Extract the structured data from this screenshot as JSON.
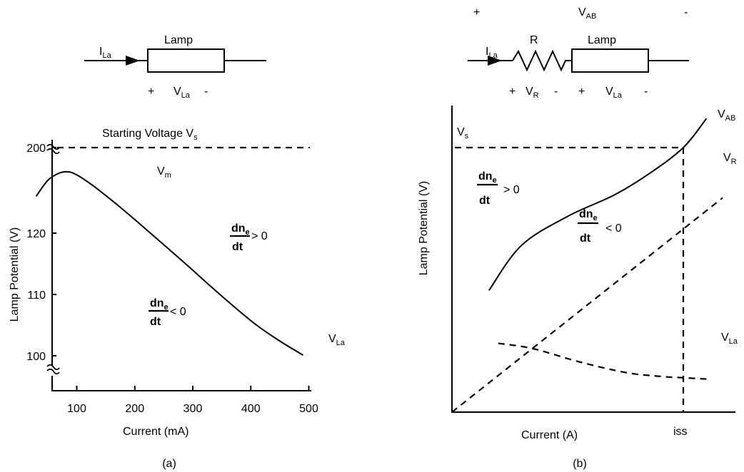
{
  "panel_a": {
    "caption": "(a)",
    "circuit": {
      "current_main": "I",
      "current_sub": "La",
      "lamp_label": "Lamp",
      "plus": "+",
      "volt_main": "V",
      "volt_sub": "La",
      "minus": "-"
    },
    "starting_voltage_label": "Starting Voltage V",
    "starting_voltage_sub": "s",
    "vm_main": "V",
    "vm_sub": "m",
    "curve_main": "V",
    "curve_sub": "La",
    "annot_pos": {
      "num_main": "dn",
      "num_sub": "e",
      "den": "dt",
      "rel": "> 0"
    },
    "annot_neg": {
      "num_main": "dn",
      "num_sub": "e",
      "den": "dt",
      "rel": "< 0"
    }
  },
  "panel_b": {
    "caption": "(b)",
    "circuit": {
      "plus_left": "+",
      "vab_main": "V",
      "vab_sub": "AB",
      "minus_right": "-",
      "current_main": "I",
      "current_sub": "La",
      "resistor_label": "R",
      "lamp_label": "Lamp",
      "r_plus": "+",
      "r_main": "V",
      "r_sub": "R",
      "r_minus": "-",
      "la_plus": "+",
      "la_main": "V",
      "la_sub": "La",
      "la_minus": "-"
    },
    "vs_main": "V",
    "vs_sub": "s",
    "vab_curve_main": "V",
    "vab_curve_sub": "AB",
    "vr_curve_main": "V",
    "vr_curve_sub": "R",
    "vla_curve_main": "V",
    "vla_curve_sub": "La",
    "annot_pos": {
      "num_main": "dn",
      "num_sub": "e",
      "den": "dt",
      "rel": "> 0"
    },
    "annot_neg": {
      "num_main": "dn",
      "num_sub": "e",
      "den": "dt",
      "rel": "< 0"
    }
  },
  "chart_data": [
    {
      "type": "line",
      "xlabel": "Current (mA)",
      "ylabel": "Lamp Potential (V)",
      "x_ticks": [
        100,
        200,
        300,
        400,
        500
      ],
      "y_ticks": [
        100,
        110,
        120,
        200
      ],
      "y_axis_breaks": true,
      "reference_line": {
        "label": "Starting Voltage V_s",
        "y": 200,
        "style": "dashed"
      },
      "series": [
        {
          "name": "V_La",
          "x": [
            30,
            50,
            70,
            85,
            100,
            130,
            170,
            210,
            250,
            290,
            330,
            370,
            410,
            450,
            490
          ],
          "y": [
            126,
            128.6,
            129.8,
            130,
            129.5,
            127.6,
            124.6,
            121.4,
            118.1,
            114.8,
            111.4,
            108.1,
            105,
            102.4,
            100.1
          ]
        }
      ],
      "annotations": [
        "V_m",
        "dn_e/dt > 0",
        "dn_e/dt < 0"
      ]
    },
    {
      "type": "line",
      "xlabel": "Current (A)",
      "ylabel": "Lamp Potential (V)",
      "x_ticks": [
        "iss"
      ],
      "y_ticks": [
        "V_s"
      ],
      "reference_lines": [
        {
          "label": "V_s",
          "orientation": "horizontal",
          "style": "dashed"
        },
        {
          "label": "iss",
          "orientation": "vertical",
          "style": "dashed"
        }
      ],
      "series": [
        {
          "name": "V_AB",
          "x": [
            0.16,
            0.3,
            0.5,
            0.7,
            0.85,
            1.0,
            1.1
          ],
          "y": [
            0.46,
            0.63,
            0.74,
            0.82,
            0.9,
            1.0,
            1.11
          ],
          "style": "solid"
        },
        {
          "name": "V_R",
          "x": [
            0,
            1.17
          ],
          "y": [
            0,
            0.81
          ],
          "style": "dashed"
        },
        {
          "name": "V_La",
          "x": [
            0.2,
            0.35,
            0.55,
            0.75,
            0.9,
            1.0,
            1.1
          ],
          "y": [
            0.26,
            0.24,
            0.19,
            0.15,
            0.135,
            0.13,
            0.125
          ],
          "style": "dashed"
        }
      ],
      "annotations": [
        "dn_e/dt > 0",
        "dn_e/dt < 0"
      ]
    }
  ]
}
